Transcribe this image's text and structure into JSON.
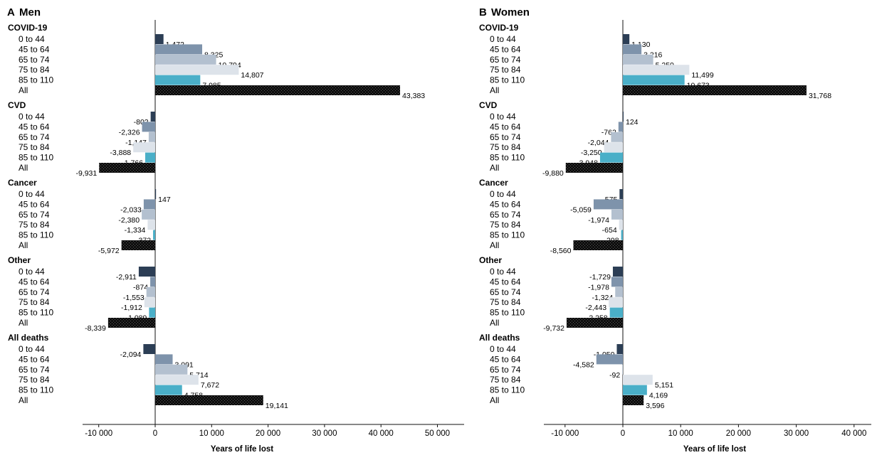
{
  "chart_data": [
    {
      "type": "bar",
      "orientation": "horizontal",
      "panel": "A",
      "title": "Men",
      "xlabel": "Years of life lost",
      "xlim": [
        -13000,
        55000
      ],
      "xticks": [
        -10000,
        0,
        10000,
        20000,
        30000,
        40000,
        50000
      ],
      "xtick_labels": [
        "-10 000",
        "0",
        "10 000",
        "20 000",
        "30 000",
        "40 000",
        "50 000"
      ],
      "subgroups": [
        "0 to 44",
        "45 to 64",
        "65 to 74",
        "75 to 84",
        "85 to 110",
        "All"
      ],
      "groups": [
        {
          "name": "COVID-19",
          "values": [
            1472,
            8325,
            10794,
            14807,
            7985,
            43383
          ],
          "labels": [
            "1,472",
            "8,325",
            "10,794",
            "14,807",
            "7,985",
            "43,383"
          ]
        },
        {
          "name": "CVD",
          "values": [
            -802,
            -2326,
            -1147,
            -3888,
            -1766,
            -9931
          ],
          "labels": [
            "-802",
            "-2,326",
            "-1,147",
            "-3,888",
            "-1,766",
            "-9,931"
          ]
        },
        {
          "name": "Cancer",
          "values": [
            147,
            -2033,
            -2380,
            -1334,
            -372,
            -5972
          ],
          "labels": [
            "147",
            "-2,033",
            "-2,380",
            "-1,334",
            "-372",
            "-5,972"
          ]
        },
        {
          "name": "Other",
          "values": [
            -2911,
            -874,
            -1553,
            -1912,
            -1089,
            -8339
          ],
          "labels": [
            "-2,911",
            "-874",
            "-1,553",
            "-1,912",
            "-1,089",
            "-8,339"
          ]
        },
        {
          "name": "All deaths",
          "values": [
            -2094,
            3091,
            5714,
            7672,
            4758,
            19141
          ],
          "labels": [
            "-2,094",
            "3,091",
            "5,714",
            "7,672",
            "4,758",
            "19,141"
          ]
        }
      ]
    },
    {
      "type": "bar",
      "orientation": "horizontal",
      "panel": "B",
      "title": "Women",
      "xlabel": "Years of life lost",
      "xlim": [
        -14000,
        44000
      ],
      "xticks": [
        -10000,
        0,
        10000,
        20000,
        30000,
        40000
      ],
      "xtick_labels": [
        "-10 000",
        "0",
        "10 000",
        "20 000",
        "30 000",
        "40 000"
      ],
      "subgroups": [
        "0 to 44",
        "45 to 64",
        "65 to 74",
        "75 to 84",
        "85 to 110",
        "All"
      ],
      "groups": [
        {
          "name": "COVID-19",
          "values": [
            1130,
            3216,
            5250,
            11499,
            10673,
            31768
          ],
          "labels": [
            "1,130",
            "3,216",
            "5,250",
            "11,499",
            "10,673",
            "31,768"
          ]
        },
        {
          "name": "CVD",
          "values": [
            124,
            -762,
            -2044,
            -3250,
            -3948,
            -9880
          ],
          "labels": [
            "124",
            "-762",
            "-2,044",
            "-3,250",
            "-3,948",
            "-9,880"
          ]
        },
        {
          "name": "Cancer",
          "values": [
            -575,
            -5059,
            -1974,
            -654,
            -298,
            -8560
          ],
          "labels": [
            "-575",
            "-5,059",
            "-1,974",
            "-654",
            "-298",
            "-8,560"
          ]
        },
        {
          "name": "Other",
          "values": [
            -1729,
            -1978,
            -1324,
            -2443,
            -2258,
            -9732
          ],
          "labels": [
            "-1,729",
            "-1,978",
            "-1,324",
            "-2,443",
            "-2,258",
            "-9,732"
          ]
        },
        {
          "name": "All deaths",
          "values": [
            -1050,
            -4582,
            -92,
            5151,
            4169,
            3596
          ],
          "labels": [
            "-1,050",
            "-4,582",
            "-92",
            "5,151",
            "4,169",
            "3,596"
          ]
        }
      ]
    }
  ],
  "colors": {
    "0 to 44": "#2c3e55",
    "45 to 64": "#7e93ab",
    "65 to 74": "#b3c0cf",
    "75 to 84": "#dde3ea",
    "85 to 110": "#4aafc8",
    "All": "#141414"
  }
}
